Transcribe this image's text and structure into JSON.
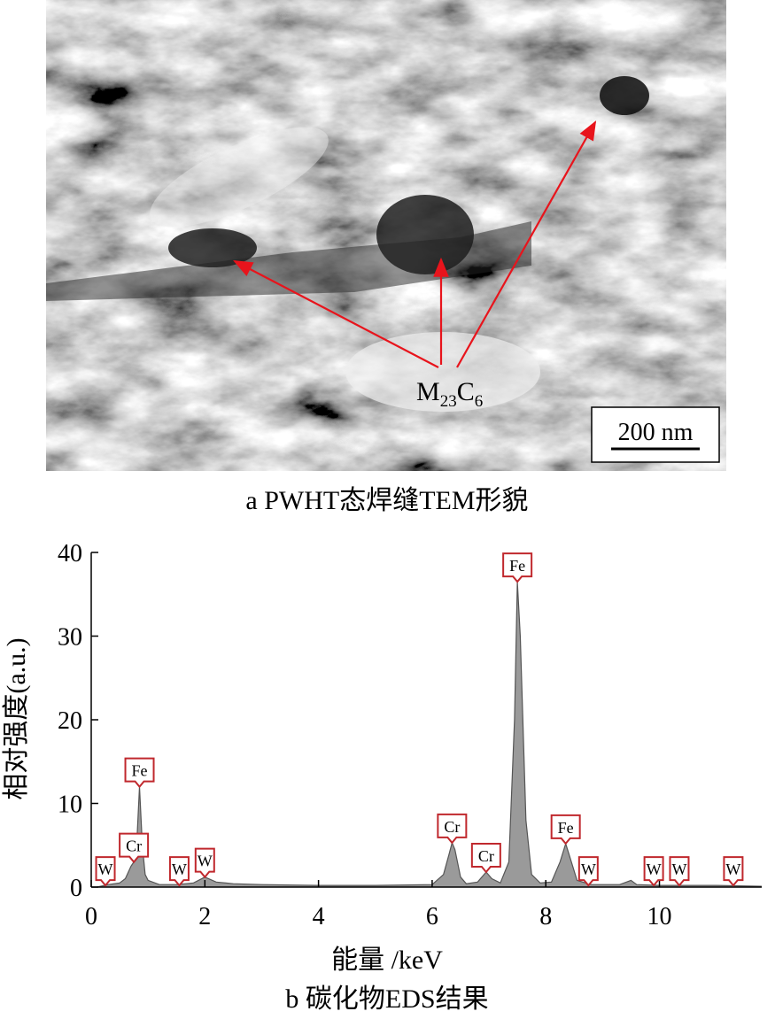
{
  "figure_a": {
    "caption": "a PWHT态焊缝TEM形貌",
    "label_parts": [
      "M",
      "23",
      "C",
      "6"
    ],
    "scale_bar": "200 nm"
  },
  "chart_data": {
    "type": "area",
    "caption": "b 碳化物EDS结果",
    "x_label": "能量 /keV",
    "y_label": "相对强度(a.u.)",
    "xlim": [
      0,
      11.8
    ],
    "ylim": [
      0,
      40
    ],
    "xticks": [
      0,
      2,
      4,
      6,
      8,
      10
    ],
    "yticks": [
      0,
      10,
      20,
      30,
      40
    ],
    "x": [
      0.1,
      0.3,
      0.5,
      0.6,
      0.7,
      0.75,
      0.8,
      0.85,
      0.9,
      0.95,
      1.0,
      1.2,
      1.5,
      1.8,
      2.0,
      2.2,
      2.5,
      3.0,
      4.0,
      5.0,
      6.0,
      6.2,
      6.3,
      6.35,
      6.4,
      6.5,
      6.6,
      6.8,
      6.95,
      7.05,
      7.2,
      7.35,
      7.45,
      7.5,
      7.55,
      7.65,
      7.75,
      7.9,
      8.1,
      8.25,
      8.35,
      8.45,
      8.55,
      8.8,
      9.3,
      9.5,
      9.6,
      10,
      11,
      11.8
    ],
    "series": [
      {
        "color": "#9a9a9a",
        "values": [
          0,
          0.3,
          0.5,
          1.0,
          2.5,
          3.0,
          5,
          12,
          5,
          1.5,
          0.8,
          0.3,
          0.3,
          0.5,
          1.2,
          0.6,
          0.4,
          0.3,
          0.2,
          0.2,
          0.3,
          1.5,
          4,
          5.3,
          4.5,
          1.2,
          0.4,
          0.6,
          1.8,
          1.0,
          0.5,
          3,
          20,
          36.5,
          30,
          8,
          1.5,
          0.5,
          0.6,
          3,
          5.2,
          3,
          0.8,
          0.3,
          0.3,
          0.8,
          0.3,
          0.2,
          0.2,
          0.1
        ]
      }
    ],
    "annotation_color": "#c0282d",
    "annotations": [
      {
        "text": "W",
        "x": 0.25,
        "y": 0.2
      },
      {
        "text": "Cr",
        "x": 0.75,
        "y": 3.0
      },
      {
        "text": "Fe",
        "x": 0.85,
        "y": 12
      },
      {
        "text": "W",
        "x": 1.55,
        "y": 0.2
      },
      {
        "text": "W",
        "x": 2.0,
        "y": 1.2
      },
      {
        "text": "Cr",
        "x": 6.35,
        "y": 5.3
      },
      {
        "text": "Cr",
        "x": 6.95,
        "y": 1.8
      },
      {
        "text": "Fe",
        "x": 7.5,
        "y": 36.5
      },
      {
        "text": "Fe",
        "x": 8.35,
        "y": 5.2
      },
      {
        "text": "W",
        "x": 8.75,
        "y": 0.2
      },
      {
        "text": "W",
        "x": 9.9,
        "y": 0.2
      },
      {
        "text": "W",
        "x": 10.35,
        "y": 0.2
      },
      {
        "text": "W",
        "x": 11.3,
        "y": 0.2
      }
    ]
  }
}
